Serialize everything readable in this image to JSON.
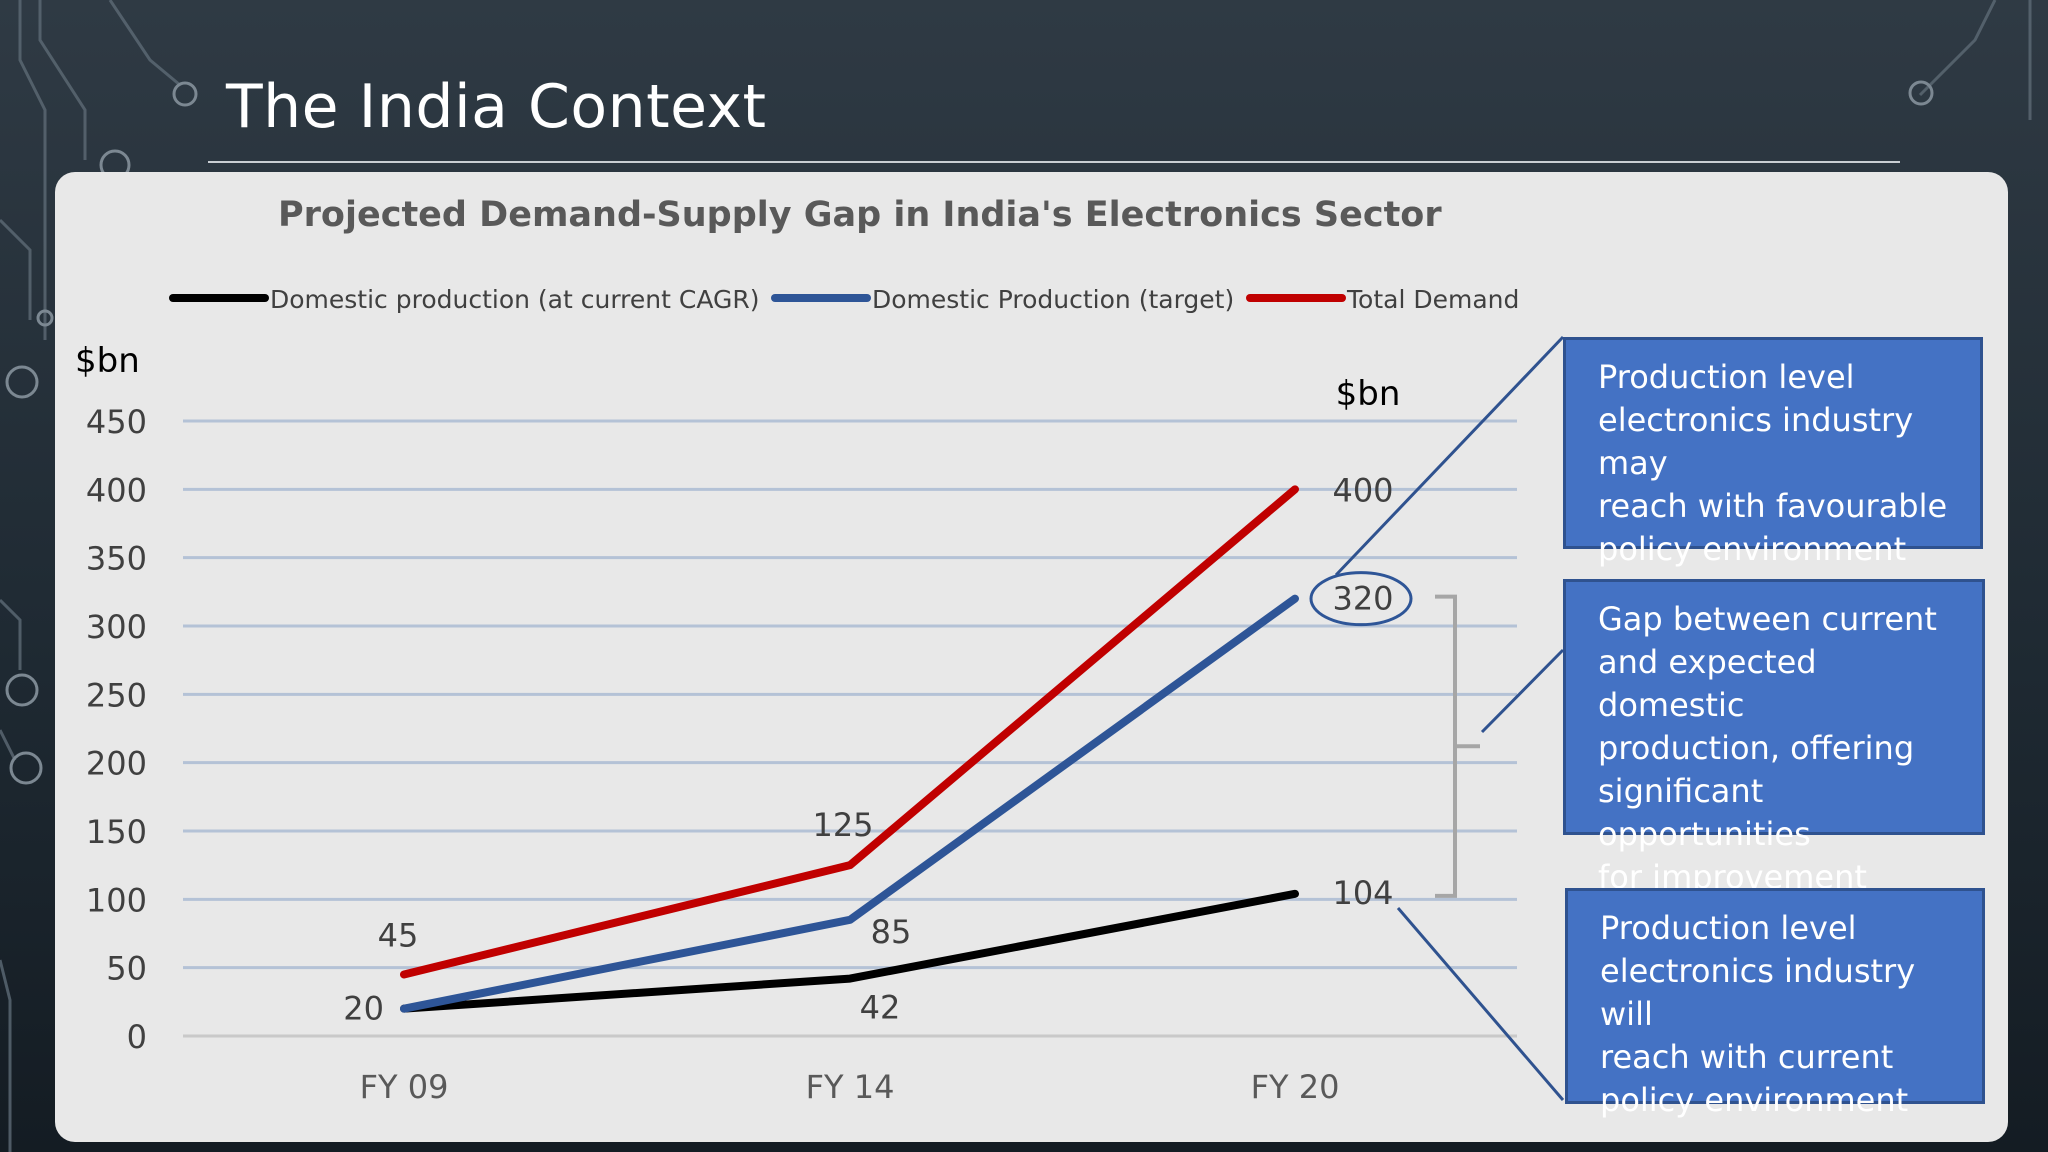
{
  "slide": {
    "title": "The India Context"
  },
  "chart_data": {
    "type": "line",
    "title": "Projected Demand-Supply Gap in India's Electronics Sector",
    "ylabel": "$bn",
    "ylim": [
      0,
      450
    ],
    "y_ticks": [
      0,
      50,
      100,
      150,
      200,
      250,
      300,
      350,
      400,
      450
    ],
    "categories": [
      "FY 09",
      "FY 14",
      "FY 20"
    ],
    "grid": true,
    "legend_position": "top",
    "end_unit_label": "$bn",
    "series": [
      {
        "name": "Domestic production (at current CAGR)",
        "color": "#000000",
        "values": [
          20,
          42,
          104
        ],
        "labels": [
          "20",
          "42",
          "104"
        ]
      },
      {
        "name": "Domestic Production (target)",
        "color": "#2e5597",
        "values": [
          20,
          85,
          320
        ],
        "labels": [
          "",
          "85",
          "320"
        ]
      },
      {
        "name": "Total Demand",
        "color": "#c00000",
        "values": [
          45,
          125,
          400
        ],
        "labels": [
          "45",
          "125",
          "400"
        ]
      }
    ],
    "highlighted_value": "320"
  },
  "callouts": [
    {
      "lines": [
        "Production level",
        "electronics industry may",
        "reach with favourable",
        "policy environment"
      ]
    },
    {
      "lines": [
        "Gap between current",
        "and expected domestic",
        "production, offering",
        "significant opportunities",
        "for improvement"
      ]
    },
    {
      "lines": [
        "Production level",
        "electronics industry will",
        "reach with current",
        "policy environment"
      ]
    }
  ],
  "colors": {
    "callout_fill": "#4472c4",
    "callout_border": "#2f528f",
    "panel": "#e8e8e8",
    "background": "#26313b"
  }
}
